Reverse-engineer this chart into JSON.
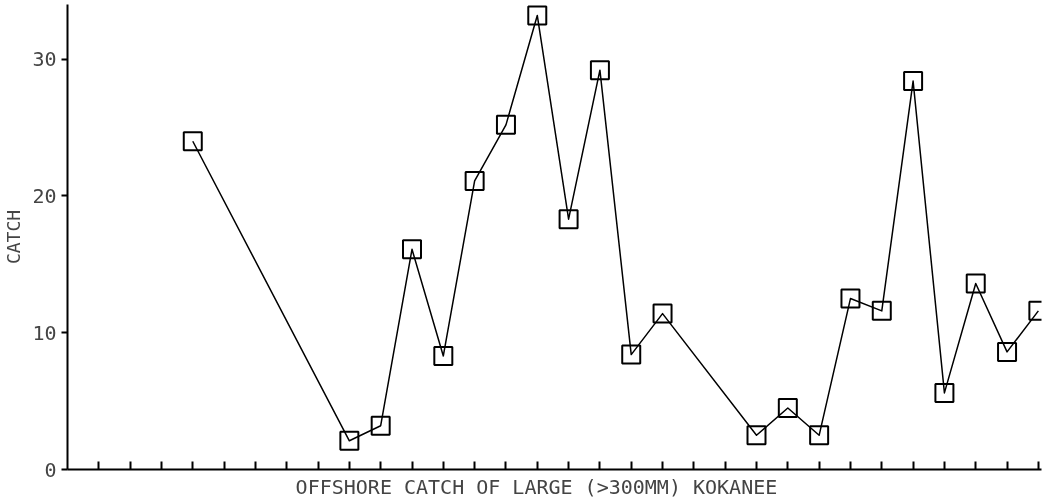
{
  "chart_data": {
    "type": "line",
    "xlabel": "OFFSHORE CATCH OF LARGE (>300MM)    KOKANEE",
    "ylabel": "CATCH",
    "categories": [
      null,
      null,
      null,
      null,
      null,
      null,
      null,
      null,
      null,
      null,
      null,
      null,
      null,
      null,
      null,
      null,
      null,
      null,
      null,
      null,
      null,
      null,
      null,
      null,
      null,
      null,
      null,
      null,
      null,
      null,
      null
    ],
    "series": [
      {
        "color": "#000000",
        "values": [
          null,
          null,
          null,
          24,
          null,
          null,
          null,
          null,
          2.1,
          3.2,
          16.1,
          8.3,
          21.1,
          25.2,
          33.2,
          18.3,
          29.2,
          8.4,
          11.4,
          null,
          null,
          2.5,
          4.5,
          2.5,
          12.5,
          11.6,
          28.4,
          5.6,
          13.6,
          8.6,
          11.6
        ]
      }
    ],
    "ylim": [
      0,
      34
    ],
    "yticks": [
      0,
      10,
      20,
      30
    ],
    "tick_labels": "y",
    "marker": "square",
    "line_style": "solid"
  }
}
